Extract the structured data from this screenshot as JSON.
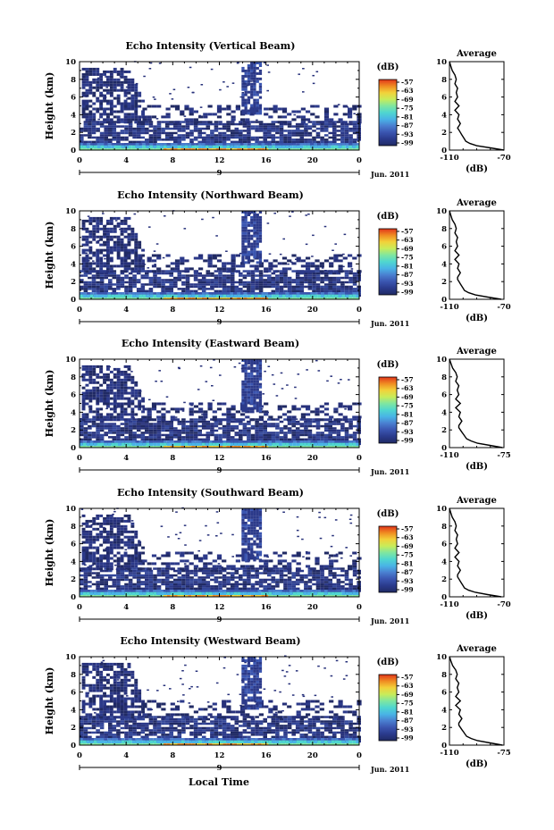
{
  "chart_data": [
    {
      "type": "heatmap",
      "title": "Echo Intensity (Vertical Beam)",
      "ylabel": "Height (km)",
      "x_ticks": [
        "0",
        "4",
        "8",
        "12",
        "16",
        "20",
        "0"
      ],
      "y_ticks": [
        "0",
        "2",
        "4",
        "6",
        "8",
        "10"
      ],
      "date_day": "9",
      "date_month": "Jun. 2011",
      "xlim": [
        0,
        24
      ],
      "ylim": [
        0,
        10
      ],
      "colorbar": {
        "label": "(dB)",
        "ticks": [
          "-57",
          "-63",
          "-69",
          "-75",
          "-81",
          "-87",
          "-93",
          "-99"
        ],
        "range": [
          -99,
          -57
        ]
      },
      "profile": {
        "title": "Average",
        "xlabel": "(dB)",
        "x_ticks": [
          "-110",
          "-70"
        ],
        "y_ticks": [
          "0",
          "2",
          "4",
          "6",
          "8",
          "10"
        ],
        "xlim": [
          -110,
          -70
        ],
        "heights": [
          0,
          0.25,
          0.5,
          0.75,
          1.0,
          1.25,
          1.5,
          1.75,
          2.0,
          2.25,
          2.5,
          2.75,
          3.0,
          3.5,
          4.0,
          4.5,
          5.0,
          5.5,
          6.0,
          6.5,
          7.0,
          7.5,
          8.0,
          8.5,
          9.0,
          9.5,
          10.0
        ],
        "values": [
          -70,
          -80,
          -90,
          -95,
          -98,
          -99,
          -100,
          -101,
          -102,
          -103,
          -104,
          -103,
          -102,
          -104,
          -103,
          -106,
          -103,
          -106,
          -104,
          -105,
          -104,
          -106,
          -105,
          -106,
          -108,
          -109,
          -110
        ]
      }
    },
    {
      "type": "heatmap",
      "title": "Echo Intensity (Northward Beam)",
      "ylabel": "Height (km)",
      "x_ticks": [
        "0",
        "4",
        "8",
        "12",
        "16",
        "20",
        "0"
      ],
      "y_ticks": [
        "0",
        "2",
        "4",
        "6",
        "8",
        "10"
      ],
      "date_day": "9",
      "date_month": "Jun. 2011",
      "xlim": [
        0,
        24
      ],
      "ylim": [
        0,
        10
      ],
      "colorbar": {
        "label": "(dB)",
        "ticks": [
          "-57",
          "-63",
          "-69",
          "-75",
          "-81",
          "-87",
          "-93",
          "-99"
        ],
        "range": [
          -99,
          -57
        ]
      },
      "profile": {
        "title": "Average",
        "xlabel": "(dB)",
        "x_ticks": [
          "-110",
          "-70"
        ],
        "y_ticks": [
          "0",
          "2",
          "4",
          "6",
          "8",
          "10"
        ],
        "xlim": [
          -110,
          -70
        ],
        "heights": [
          0,
          0.25,
          0.5,
          0.75,
          1.0,
          1.25,
          1.5,
          1.75,
          2.0,
          2.25,
          2.5,
          2.75,
          3.0,
          3.5,
          4.0,
          4.5,
          5.0,
          5.5,
          6.0,
          6.5,
          7.0,
          7.5,
          8.0,
          8.5,
          9.0,
          9.5,
          10.0
        ],
        "values": [
          -72,
          -82,
          -91,
          -96,
          -99,
          -100,
          -101,
          -102,
          -103,
          -104,
          -104,
          -103,
          -102,
          -104,
          -103,
          -106,
          -103,
          -106,
          -104,
          -105,
          -104,
          -106,
          -105,
          -106,
          -108,
          -109,
          -110
        ]
      }
    },
    {
      "type": "heatmap",
      "title": "Echo Intensity (Eastward Beam)",
      "ylabel": "Height (km)",
      "x_ticks": [
        "0",
        "4",
        "8",
        "12",
        "16",
        "20",
        "0"
      ],
      "y_ticks": [
        "0",
        "2",
        "4",
        "6",
        "8",
        "10"
      ],
      "date_day": "9",
      "date_month": "Jun. 2011",
      "xlim": [
        0,
        24
      ],
      "ylim": [
        0,
        10
      ],
      "colorbar": {
        "label": "(dB)",
        "ticks": [
          "-57",
          "-63",
          "-69",
          "-75",
          "-81",
          "-87",
          "-93",
          "-99"
        ],
        "range": [
          -99,
          -57
        ]
      },
      "profile": {
        "title": "Average",
        "xlabel": "(dB)",
        "x_ticks": [
          "-110",
          "-75"
        ],
        "y_ticks": [
          "0",
          "2",
          "4",
          "6",
          "8",
          "10"
        ],
        "xlim": [
          -110,
          -75
        ],
        "heights": [
          0,
          0.25,
          0.5,
          0.75,
          1.0,
          1.25,
          1.5,
          1.75,
          2.0,
          2.25,
          2.5,
          2.75,
          3.0,
          3.5,
          4.0,
          4.5,
          5.0,
          5.5,
          6.0,
          6.5,
          7.0,
          7.5,
          8.0,
          8.5,
          9.0,
          9.5,
          10.0
        ],
        "values": [
          -76,
          -84,
          -92,
          -96,
          -99,
          -100,
          -101,
          -102,
          -103,
          -104,
          -104,
          -103,
          -102,
          -104,
          -103,
          -106,
          -103,
          -106,
          -104,
          -105,
          -104,
          -106,
          -105,
          -106,
          -108,
          -109,
          -110
        ]
      }
    },
    {
      "type": "heatmap",
      "title": "Echo Intensity (Southward Beam)",
      "ylabel": "Height (km)",
      "x_ticks": [
        "0",
        "4",
        "8",
        "12",
        "16",
        "20",
        "0"
      ],
      "y_ticks": [
        "0",
        "2",
        "4",
        "6",
        "8",
        "10"
      ],
      "date_day": "9",
      "date_month": "Jun. 2011",
      "xlim": [
        0,
        24
      ],
      "ylim": [
        0,
        10
      ],
      "colorbar": {
        "label": "(dB)",
        "ticks": [
          "-57",
          "-63",
          "-69",
          "-75",
          "-81",
          "-87",
          "-93",
          "-99"
        ],
        "range": [
          -99,
          -57
        ]
      },
      "profile": {
        "title": "Average",
        "xlabel": "(dB)",
        "x_ticks": [
          "-110",
          "-70"
        ],
        "y_ticks": [
          "0",
          "2",
          "4",
          "6",
          "8",
          "10"
        ],
        "xlim": [
          -110,
          -70
        ],
        "heights": [
          0,
          0.25,
          0.5,
          0.75,
          1.0,
          1.25,
          1.5,
          1.75,
          2.0,
          2.25,
          2.5,
          2.75,
          3.0,
          3.5,
          4.0,
          4.5,
          5.0,
          5.5,
          6.0,
          6.5,
          7.0,
          7.5,
          8.0,
          8.5,
          9.0,
          9.5,
          10.0
        ],
        "values": [
          -72,
          -82,
          -91,
          -96,
          -99,
          -100,
          -101,
          -102,
          -103,
          -104,
          -104,
          -103,
          -102,
          -104,
          -103,
          -106,
          -103,
          -106,
          -104,
          -105,
          -104,
          -106,
          -105,
          -106,
          -108,
          -109,
          -110
        ]
      }
    },
    {
      "type": "heatmap",
      "title": "Echo Intensity (Westward Beam)",
      "ylabel": "Height (km)",
      "x_ticks": [
        "0",
        "4",
        "8",
        "12",
        "16",
        "20",
        "0"
      ],
      "y_ticks": [
        "0",
        "2",
        "4",
        "6",
        "8",
        "10"
      ],
      "date_day": "9",
      "date_month": "Jun. 2011",
      "xlim": [
        0,
        24
      ],
      "ylim": [
        0,
        10
      ],
      "colorbar": {
        "label": "(dB)",
        "ticks": [
          "-57",
          "-63",
          "-69",
          "-75",
          "-81",
          "-87",
          "-93",
          "-99"
        ],
        "range": [
          -99,
          -57
        ]
      },
      "profile": {
        "title": "Average",
        "xlabel": "(dB)",
        "x_ticks": [
          "-110",
          "-75"
        ],
        "y_ticks": [
          "0",
          "2",
          "4",
          "6",
          "8",
          "10"
        ],
        "xlim": [
          -110,
          -75
        ],
        "heights": [
          0,
          0.25,
          0.5,
          0.75,
          1.0,
          1.25,
          1.5,
          1.75,
          2.0,
          2.25,
          2.5,
          2.75,
          3.0,
          3.5,
          4.0,
          4.5,
          5.0,
          5.5,
          6.0,
          6.5,
          7.0,
          7.5,
          8.0,
          8.5,
          9.0,
          9.5,
          10.0
        ],
        "values": [
          -76,
          -84,
          -92,
          -96,
          -99,
          -100,
          -101,
          -102,
          -103,
          -104,
          -104,
          -103,
          -102,
          -104,
          -103,
          -106,
          -103,
          -106,
          -104,
          -105,
          -104,
          -106,
          -105,
          -106,
          -108,
          -109,
          -110
        ]
      }
    }
  ],
  "figure": {
    "xlabel": "Local Time",
    "colormap": [
      "#202a64",
      "#2a3a8c",
      "#3a55b0",
      "#4a7fd0",
      "#49b4e6",
      "#4fd6d0",
      "#7fe6a0",
      "#c8ec5a",
      "#f2d23a",
      "#f08c22",
      "#e0341a"
    ]
  }
}
